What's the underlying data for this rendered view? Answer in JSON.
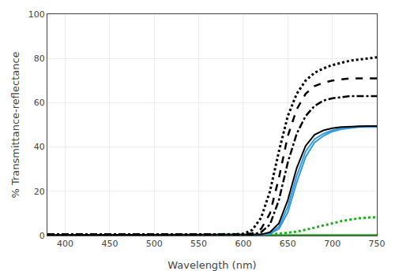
{
  "chart_data": {
    "type": "line",
    "xlabel": "Wavelength (nm)",
    "ylabel": "% Transmittance-reflectance",
    "x": [
      380,
      390,
      400,
      410,
      420,
      430,
      440,
      450,
      460,
      470,
      480,
      490,
      500,
      510,
      520,
      530,
      540,
      550,
      560,
      570,
      580,
      590,
      600,
      610,
      620,
      630,
      640,
      650,
      660,
      670,
      680,
      690,
      700,
      710,
      720,
      730,
      740,
      750
    ],
    "xlim": [
      380,
      750
    ],
    "ylim": [
      0,
      100
    ],
    "xticks": [
      400,
      450,
      500,
      550,
      600,
      650,
      700,
      750
    ],
    "yticks": [
      0,
      20,
      40,
      60,
      80,
      100
    ],
    "grid": true,
    "series": [
      {
        "color": "#22aa22",
        "line_style": "solid",
        "values": [
          0.3,
          0.3,
          0.3,
          0.3,
          0.3,
          0.3,
          0.3,
          0.3,
          0.3,
          0.3,
          0.3,
          0.3,
          0.3,
          0.3,
          0.3,
          0.3,
          0.3,
          0.3,
          0.3,
          0.3,
          0.3,
          0.3,
          0.3,
          0.3,
          0.3,
          0.3,
          0.3,
          0.3,
          0.3,
          0.3,
          0.3,
          0.3,
          0.3,
          0.3,
          0.3,
          0.3,
          0.3,
          0.3
        ]
      },
      {
        "color": "#22aa22",
        "line_style": "dotted",
        "values": [
          0.5,
          0.5,
          0.5,
          0.5,
          0.5,
          0.5,
          0.5,
          0.5,
          0.5,
          0.5,
          0.5,
          0.5,
          0.5,
          0.5,
          0.5,
          0.5,
          0.5,
          0.5,
          0.5,
          0.5,
          0.5,
          0.5,
          0.5,
          0.5,
          0.5,
          0.6,
          0.8,
          1.2,
          1.8,
          2.6,
          3.5,
          4.5,
          5.5,
          6.5,
          7.2,
          7.8,
          8.1,
          8.3
        ]
      },
      {
        "color": "#3399dd",
        "line_style": "solid",
        "values": [
          0.3,
          0.3,
          0.3,
          0.3,
          0.3,
          0.3,
          0.3,
          0.3,
          0.3,
          0.3,
          0.3,
          0.3,
          0.3,
          0.3,
          0.3,
          0.3,
          0.3,
          0.3,
          0.3,
          0.3,
          0.3,
          0.3,
          0.3,
          0.3,
          0.35,
          0.8,
          3.0,
          10.5,
          24.0,
          35.5,
          42.0,
          45.0,
          47.0,
          48.0,
          48.5,
          49.0,
          49.0,
          49.0
        ]
      },
      {
        "color": "#3399dd",
        "line_style": "solid",
        "values": [
          0.3,
          0.3,
          0.3,
          0.3,
          0.3,
          0.3,
          0.3,
          0.3,
          0.3,
          0.3,
          0.3,
          0.3,
          0.3,
          0.3,
          0.3,
          0.3,
          0.3,
          0.3,
          0.3,
          0.3,
          0.3,
          0.3,
          0.3,
          0.3,
          0.4,
          1.0,
          4.0,
          13.0,
          27.0,
          38.0,
          43.5,
          46.0,
          47.5,
          48.5,
          49.0,
          49.5,
          49.5,
          49.5
        ]
      },
      {
        "color": "black",
        "line_style": "solid",
        "values": [
          0.3,
          0.3,
          0.3,
          0.3,
          0.3,
          0.3,
          0.3,
          0.3,
          0.3,
          0.3,
          0.3,
          0.3,
          0.3,
          0.3,
          0.3,
          0.3,
          0.3,
          0.3,
          0.3,
          0.3,
          0.3,
          0.3,
          0.3,
          0.3,
          0.5,
          1.5,
          5.5,
          16.0,
          30.5,
          40.5,
          45.5,
          47.5,
          48.5,
          49.0,
          49.2,
          49.3,
          49.5,
          49.5
        ]
      },
      {
        "color": "black",
        "line_style": "dashdot",
        "values": [
          0.5,
          0.5,
          0.5,
          0.5,
          0.5,
          0.5,
          0.5,
          0.5,
          0.5,
          0.5,
          0.5,
          0.5,
          0.5,
          0.5,
          0.5,
          0.5,
          0.5,
          0.5,
          0.5,
          0.5,
          0.5,
          0.5,
          0.5,
          0.5,
          1.5,
          5.0,
          16.0,
          33.0,
          46.0,
          54.0,
          58.5,
          61.0,
          62.0,
          62.5,
          63.0,
          63.0,
          63.0,
          63.0
        ]
      },
      {
        "color": "black",
        "line_style": "dashed",
        "values": [
          0.5,
          0.5,
          0.5,
          0.5,
          0.5,
          0.5,
          0.5,
          0.5,
          0.5,
          0.5,
          0.5,
          0.5,
          0.5,
          0.5,
          0.5,
          0.5,
          0.5,
          0.5,
          0.5,
          0.5,
          0.5,
          0.5,
          0.5,
          1.0,
          3.0,
          10.0,
          26.0,
          45.0,
          57.0,
          64.0,
          67.5,
          69.0,
          70.0,
          70.5,
          71.0,
          71.0,
          71.0,
          71.0
        ]
      },
      {
        "color": "black",
        "line_style": "dotted",
        "values": [
          0.5,
          0.5,
          0.5,
          0.5,
          0.5,
          0.5,
          0.5,
          0.5,
          0.5,
          0.5,
          0.5,
          0.5,
          0.5,
          0.5,
          0.5,
          0.5,
          0.5,
          0.5,
          0.5,
          0.5,
          0.5,
          0.5,
          0.8,
          2.5,
          8.0,
          20.0,
          38.0,
          54.0,
          64.0,
          70.0,
          73.5,
          75.5,
          77.0,
          78.0,
          79.0,
          79.5,
          80.0,
          80.5
        ]
      }
    ]
  }
}
